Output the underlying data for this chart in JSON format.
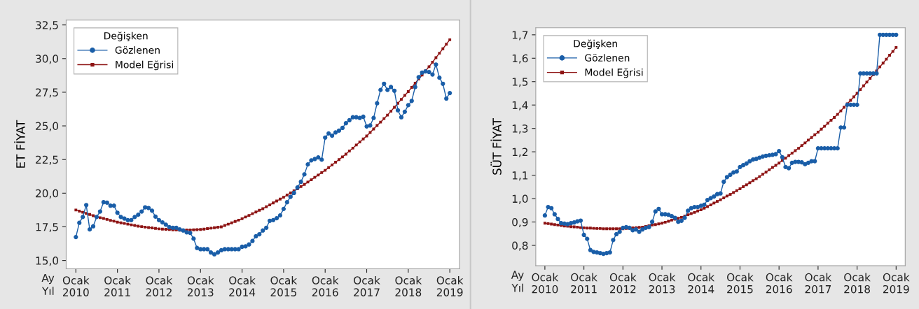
{
  "chart_data": [
    {
      "type": "line",
      "ylabel": "ET FİYAT",
      "legend_title": "Değişken",
      "legend": "top left",
      "grid": false,
      "line_style": "solid",
      "categories": [
        "Ocak\n2010",
        null,
        null,
        null,
        null,
        null,
        null,
        null,
        null,
        null,
        null,
        null,
        "Ocak\n2011",
        null,
        null,
        null,
        null,
        null,
        null,
        null,
        null,
        null,
        null,
        null,
        "Ocak\n2012",
        null,
        null,
        null,
        null,
        null,
        null,
        null,
        null,
        null,
        null,
        null,
        "Ocak\n2013",
        null,
        null,
        null,
        null,
        null,
        null,
        null,
        null,
        null,
        null,
        null,
        "Ocak\n2014",
        null,
        null,
        null,
        null,
        null,
        null,
        null,
        null,
        null,
        null,
        null,
        "Ocak\n2015",
        null,
        null,
        null,
        null,
        null,
        null,
        null,
        null,
        null,
        null,
        null,
        "Ocak\n2016",
        null,
        null,
        null,
        null,
        null,
        null,
        null,
        null,
        null,
        null,
        null,
        "Ocak\n2017",
        null,
        null,
        null,
        null,
        null,
        null,
        null,
        null,
        null,
        null,
        null,
        "Ocak\n2018",
        null,
        null,
        null,
        null,
        null,
        null,
        null,
        null,
        null,
        null,
        null,
        "Ocak\n2019"
      ],
      "annotations": [
        "Ay",
        "Yıl"
      ],
      "ylim": [
        14.38,
        32.86
      ],
      "yticks": [
        {
          "value": 15.0,
          "label": "15,0"
        },
        {
          "value": 17.5,
          "label": "17,5"
        },
        {
          "value": 20.0,
          "label": "20,0"
        },
        {
          "value": 22.5,
          "label": "22,5"
        },
        {
          "value": 25.0,
          "label": "25,0"
        },
        {
          "value": 27.5,
          "label": "27,5"
        },
        {
          "value": 30.0,
          "label": "30,0"
        },
        {
          "value": 32.5,
          "label": "32,5"
        }
      ],
      "series": [
        {
          "name": "Gözlenen",
          "color": "#1a5ea8",
          "marker": "circle",
          "values": [
            16.74,
            17.8,
            18.23,
            19.12,
            17.31,
            17.54,
            18.23,
            18.64,
            19.33,
            19.3,
            19.07,
            19.07,
            18.55,
            18.23,
            18.12,
            18.0,
            18.0,
            18.23,
            18.4,
            18.64,
            18.95,
            18.9,
            18.7,
            18.26,
            18.0,
            17.83,
            17.66,
            17.48,
            17.43,
            17.43,
            17.31,
            17.23,
            17.09,
            17.05,
            16.62,
            15.93,
            15.84,
            15.84,
            15.84,
            15.59,
            15.46,
            15.59,
            15.76,
            15.84,
            15.84,
            15.84,
            15.84,
            15.84,
            16.02,
            16.05,
            16.19,
            16.45,
            16.8,
            16.95,
            17.23,
            17.43,
            17.95,
            18.0,
            18.14,
            18.35,
            18.83,
            19.33,
            19.73,
            20.02,
            20.42,
            20.85,
            21.4,
            22.14,
            22.44,
            22.54,
            22.66,
            22.49,
            24.13,
            24.44,
            24.27,
            24.51,
            24.65,
            24.85,
            25.2,
            25.42,
            25.64,
            25.64,
            25.59,
            25.68,
            24.96,
            25.03,
            25.59,
            26.68,
            27.67,
            28.13,
            27.67,
            27.89,
            27.61,
            26.16,
            25.64,
            26.05,
            26.54,
            26.86,
            27.89,
            28.62,
            28.96,
            29.05,
            29.0,
            28.82,
            29.56,
            28.58,
            28.13,
            27.03,
            27.44
          ]
        },
        {
          "name": "Model Eğrisi",
          "color": "#8e1515",
          "marker": "square",
          "values": [
            18.75,
            18.67,
            18.58,
            18.5,
            18.42,
            18.33,
            18.25,
            18.18,
            18.12,
            18.05,
            17.98,
            17.92,
            17.85,
            17.8,
            17.75,
            17.7,
            17.65,
            17.6,
            17.55,
            17.52,
            17.48,
            17.45,
            17.42,
            17.38,
            17.35,
            17.33,
            17.32,
            17.3,
            17.28,
            17.27,
            17.25,
            17.26,
            17.27,
            17.27,
            17.28,
            17.29,
            17.3,
            17.33,
            17.37,
            17.4,
            17.43,
            17.47,
            17.5,
            17.6,
            17.7,
            17.8,
            17.9,
            18.0,
            18.1,
            18.23,
            18.35,
            18.48,
            18.6,
            18.73,
            18.85,
            18.99,
            19.13,
            19.28,
            19.42,
            19.56,
            19.7,
            19.86,
            20.02,
            20.18,
            20.33,
            20.49,
            20.65,
            20.83,
            21.0,
            21.18,
            21.35,
            21.53,
            21.7,
            21.9,
            22.1,
            22.3,
            22.5,
            22.7,
            22.9,
            23.13,
            23.35,
            23.58,
            23.8,
            24.03,
            24.25,
            24.51,
            24.77,
            25.03,
            25.28,
            25.54,
            25.8,
            26.09,
            26.38,
            26.68,
            26.97,
            27.26,
            27.55,
            27.86,
            28.17,
            28.48,
            28.78,
            29.09,
            29.4,
            29.73,
            30.07,
            30.4,
            30.73,
            31.07,
            31.4
          ]
        }
      ]
    },
    {
      "type": "line",
      "ylabel": "SÜT FİYAT",
      "legend_title": "Değişken",
      "legend": "top left",
      "grid": false,
      "line_style": "solid",
      "categories": [
        "Ocak\n2010",
        null,
        null,
        null,
        null,
        null,
        null,
        null,
        null,
        null,
        null,
        null,
        "Ocak\n2011",
        null,
        null,
        null,
        null,
        null,
        null,
        null,
        null,
        null,
        null,
        null,
        "Ocak\n2012",
        null,
        null,
        null,
        null,
        null,
        null,
        null,
        null,
        null,
        null,
        null,
        "Ocak\n2013",
        null,
        null,
        null,
        null,
        null,
        null,
        null,
        null,
        null,
        null,
        null,
        "Ocak\n2014",
        null,
        null,
        null,
        null,
        null,
        null,
        null,
        null,
        null,
        null,
        null,
        "Ocak\n2015",
        null,
        null,
        null,
        null,
        null,
        null,
        null,
        null,
        null,
        null,
        null,
        "Ocak\n2016",
        null,
        null,
        null,
        null,
        null,
        null,
        null,
        null,
        null,
        null,
        null,
        "Ocak\n2017",
        null,
        null,
        null,
        null,
        null,
        null,
        null,
        null,
        null,
        null,
        null,
        "Ocak\n2018",
        null,
        null,
        null,
        null,
        null,
        null,
        null,
        null,
        null,
        null,
        null,
        "Ocak\n2019"
      ],
      "annotations": [
        "Ay",
        "Yıl"
      ],
      "ylim": [
        0.713,
        1.73
      ],
      "yticks": [
        {
          "value": 0.8,
          "label": "0,8"
        },
        {
          "value": 0.9,
          "label": "0,9"
        },
        {
          "value": 1.0,
          "label": "1,0"
        },
        {
          "value": 1.1,
          "label": "1,1"
        },
        {
          "value": 1.2,
          "label": "1,2"
        },
        {
          "value": 1.3,
          "label": "1,3"
        },
        {
          "value": 1.4,
          "label": "1,4"
        },
        {
          "value": 1.5,
          "label": "1,5"
        },
        {
          "value": 1.6,
          "label": "1,6"
        },
        {
          "value": 1.7,
          "label": "1,7"
        }
      ],
      "series": [
        {
          "name": "Gözlenen",
          "color": "#1a5ea8",
          "marker": "circle",
          "values": [
            0.928,
            0.964,
            0.959,
            0.933,
            0.913,
            0.895,
            0.893,
            0.891,
            0.895,
            0.898,
            0.903,
            0.906,
            0.845,
            0.828,
            0.78,
            0.772,
            0.77,
            0.767,
            0.764,
            0.767,
            0.77,
            0.823,
            0.848,
            0.858,
            0.875,
            0.878,
            0.875,
            0.865,
            0.868,
            0.858,
            0.868,
            0.875,
            0.878,
            0.901,
            0.945,
            0.956,
            0.933,
            0.933,
            0.931,
            0.925,
            0.918,
            0.901,
            0.905,
            0.918,
            0.948,
            0.959,
            0.964,
            0.964,
            0.969,
            0.974,
            0.994,
            1.002,
            1.009,
            1.019,
            1.022,
            1.072,
            1.092,
            1.102,
            1.112,
            1.116,
            1.135,
            1.143,
            1.15,
            1.16,
            1.167,
            1.17,
            1.175,
            1.18,
            1.183,
            1.185,
            1.187,
            1.19,
            1.203,
            1.177,
            1.135,
            1.13,
            1.153,
            1.157,
            1.157,
            1.155,
            1.147,
            1.153,
            1.16,
            1.16,
            1.215,
            1.215,
            1.215,
            1.215,
            1.215,
            1.215,
            1.215,
            1.304,
            1.304,
            1.401,
            1.401,
            1.401,
            1.401,
            1.535,
            1.535,
            1.535,
            1.535,
            1.535,
            1.535,
            1.7,
            1.7,
            1.7,
            1.7,
            1.7,
            1.7
          ]
        },
        {
          "name": "Model Eğrisi",
          "color": "#8e1515",
          "marker": "square",
          "values": [
            0.895,
            0.893,
            0.891,
            0.889,
            0.887,
            0.885,
            0.883,
            0.882,
            0.88,
            0.879,
            0.878,
            0.876,
            0.875,
            0.874,
            0.874,
            0.873,
            0.872,
            0.872,
            0.871,
            0.871,
            0.871,
            0.871,
            0.871,
            0.871,
            0.871,
            0.872,
            0.873,
            0.875,
            0.876,
            0.877,
            0.878,
            0.881,
            0.884,
            0.887,
            0.889,
            0.892,
            0.895,
            0.899,
            0.903,
            0.908,
            0.912,
            0.916,
            0.92,
            0.925,
            0.931,
            0.936,
            0.941,
            0.947,
            0.952,
            0.959,
            0.966,
            0.973,
            0.981,
            0.988,
            0.995,
            1.003,
            1.011,
            1.018,
            1.026,
            1.034,
            1.042,
            1.051,
            1.059,
            1.068,
            1.077,
            1.085,
            1.094,
            1.104,
            1.113,
            1.123,
            1.133,
            1.142,
            1.152,
            1.163,
            1.173,
            1.184,
            1.194,
            1.205,
            1.215,
            1.227,
            1.238,
            1.25,
            1.261,
            1.273,
            1.284,
            1.297,
            1.309,
            1.322,
            1.335,
            1.347,
            1.36,
            1.375,
            1.39,
            1.405,
            1.42,
            1.435,
            1.45,
            1.466,
            1.482,
            1.498,
            1.514,
            1.53,
            1.546,
            1.563,
            1.579,
            1.596,
            1.613,
            1.629,
            1.646
          ]
        }
      ]
    }
  ]
}
